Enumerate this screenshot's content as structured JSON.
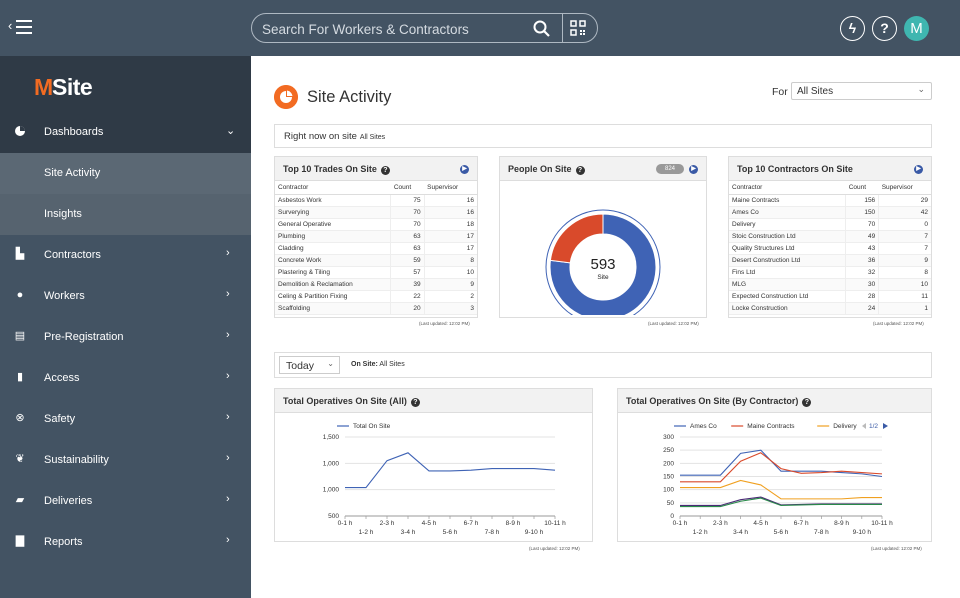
{
  "header": {
    "search_placeholder": "Search For Workers & Contractors",
    "avatar_initial": "M",
    "help_label": "?",
    "lightning_label": "ϟ"
  },
  "brand": {
    "name_m": "M",
    "name_rest": "Site",
    "accent": "#f26b22"
  },
  "sidebar": {
    "items": [
      {
        "label": "Dashboards",
        "icon": "pie-icon"
      },
      {
        "label": "Site Activity"
      },
      {
        "label": "Insights"
      },
      {
        "label": "Contractors",
        "icon": "building-icon"
      },
      {
        "label": "Workers",
        "icon": "user-icon"
      },
      {
        "label": "Pre-Registration",
        "icon": "id-card-icon"
      },
      {
        "label": "Access",
        "icon": "door-icon"
      },
      {
        "label": "Safety",
        "icon": "lifebuoy-icon"
      },
      {
        "label": "Sustainability",
        "icon": "leaf-icon"
      },
      {
        "label": "Deliveries",
        "icon": "truck-icon"
      },
      {
        "label": "Reports",
        "icon": "document-icon"
      }
    ]
  },
  "page": {
    "title": "Site Activity",
    "for_label": "For",
    "site_select": "All Sites",
    "right_now_label": "Right now on site",
    "right_now_scope": "All Sites"
  },
  "trades": {
    "title": "Top 10 Trades On Site",
    "columns": [
      "Contractor",
      "Count",
      "Supervisor"
    ],
    "rows": [
      [
        "Asbestos Work",
        "75",
        "16"
      ],
      [
        "Surverying",
        "70",
        "16"
      ],
      [
        "General Operative",
        "70",
        "18"
      ],
      [
        "Plumbing",
        "63",
        "17"
      ],
      [
        "Cladding",
        "63",
        "17"
      ],
      [
        "Concrete Work",
        "59",
        "8"
      ],
      [
        "Plastering & Tiling",
        "57",
        "10"
      ],
      [
        "Demolition & Reclamation",
        "39",
        "9"
      ],
      [
        "Celing & Partition Fixing",
        "22",
        "2"
      ],
      [
        "Scaffolding",
        "20",
        "3"
      ]
    ],
    "updated": "(Last updated: 12:02 PM)"
  },
  "people": {
    "title": "People On Site",
    "badge": "824",
    "total": "593",
    "total_label": "Site",
    "slices": [
      {
        "value": 77,
        "color": "#3f63b5"
      },
      {
        "value": 23,
        "color": "#d94a2b"
      }
    ],
    "updated": "(Last updated: 12:02 PM)"
  },
  "contractors": {
    "title": "Top 10 Contractors On Site",
    "columns": [
      "Contractor",
      "Count",
      "Supervisor"
    ],
    "rows": [
      [
        "Maine Contracts",
        "156",
        "29"
      ],
      [
        "Ames Co",
        "150",
        "42"
      ],
      [
        "Delivery",
        "70",
        "0"
      ],
      [
        "Stoic Construction Ltd",
        "49",
        "7"
      ],
      [
        "Quality Structures Ltd",
        "43",
        "7"
      ],
      [
        "Desert Construction Ltd",
        "36",
        "9"
      ],
      [
        "Fins Ltd",
        "32",
        "8"
      ],
      [
        "MLG",
        "30",
        "10"
      ],
      [
        "Expected Construction Ltd",
        "28",
        "11"
      ],
      [
        "Locke Construction",
        "24",
        "1"
      ]
    ],
    "updated": "(Last updated: 12:02 PM)"
  },
  "filter": {
    "period": "Today",
    "on_site_label": "On Site:",
    "on_site_value": "All Sites"
  },
  "chart_data": [
    {
      "type": "line",
      "title": "Total Operatives On Site (All)",
      "x": [
        "0-1 h",
        "1-2 h",
        "2-3 h",
        "3-4 h",
        "4-5 h",
        "5-6 h",
        "6-7 h",
        "7-8 h",
        "8-9 h",
        "9-10 h",
        "10-11 h"
      ],
      "ylim": [
        500,
        1500
      ],
      "yticks": [
        "500",
        "1,000",
        "1,000",
        "1,500"
      ],
      "series": [
        {
          "name": "Total On Site",
          "color": "#3f63b5",
          "values": [
            860,
            860,
            1200,
            1300,
            1070,
            1070,
            1080,
            1100,
            1100,
            1100,
            1080
          ]
        }
      ],
      "legend": "top-left",
      "updated": "(Last updated: 12:02 PM)"
    },
    {
      "type": "line",
      "title": "Total Operatives On Site (By Contractor)",
      "x": [
        "0-1 h",
        "1-2 h",
        "2-3 h",
        "3-4 h",
        "4-5 h",
        "5-6 h",
        "6-7 h",
        "7-8 h",
        "8-9 h",
        "9-10 h",
        "10-11 h"
      ],
      "ylim": [
        0,
        300
      ],
      "yticks": [
        "0",
        "50",
        "100",
        "150",
        "200",
        "250",
        "300"
      ],
      "pager": "1/2",
      "series": [
        {
          "name": "Ames Co",
          "color": "#3f63b5",
          "values": [
            155,
            155,
            155,
            238,
            250,
            170,
            170,
            170,
            165,
            160,
            150
          ]
        },
        {
          "name": "Maine Contracts",
          "color": "#d94a2b",
          "values": [
            130,
            130,
            130,
            208,
            240,
            180,
            162,
            165,
            170,
            165,
            160
          ]
        },
        {
          "name": "Delivery",
          "color": "#f0a020",
          "values": [
            108,
            108,
            108,
            135,
            118,
            65,
            65,
            65,
            65,
            70,
            70
          ]
        },
        {
          "name": "",
          "color": "#4a2a75",
          "values": [
            40,
            40,
            40,
            62,
            72,
            42,
            44,
            46,
            46,
            46,
            46
          ]
        },
        {
          "name": "",
          "color": "#2a8a4a",
          "values": [
            36,
            36,
            36,
            56,
            68,
            40,
            42,
            44,
            44,
            44,
            44
          ]
        }
      ],
      "legend": "top",
      "updated": "(Last updated: 12:02 PM)"
    }
  ]
}
